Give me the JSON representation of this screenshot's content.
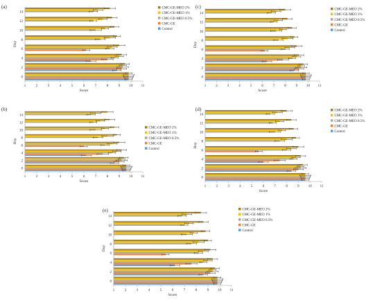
{
  "legend_entries": [
    "CMC-GE-MEO 2%",
    "CMC-GE-MEO 1%",
    "CMC-GE-MEO 0.5%",
    "CMC-GE",
    "Control"
  ],
  "colors": {
    "CMC-GE-MEO 2%": "#a67e12",
    "CMC-GE-MEO 1%": "#f2c200",
    "CMC-GE-MEO 0.5%": "#a5a5a5",
    "CMC-GE": "#ef7d32",
    "Control": "#5b9bd5",
    "axis": "#999999",
    "error_bar": "#333333"
  },
  "chart_data": [
    {
      "panel": "(a)",
      "type": "bar",
      "orientation": "horizontal",
      "xlabel": "Score",
      "ylabel": "Day",
      "xlim": [
        1,
        11
      ],
      "xticks": [
        "1",
        "2",
        "3",
        "4",
        "5",
        "6",
        "7",
        "8",
        "9",
        "10",
        "11"
      ],
      "categories": [
        "0",
        "2",
        "4",
        "6",
        "8",
        "10",
        "12",
        "14"
      ],
      "legend_position": "right",
      "series": [
        {
          "name": "Control",
          "values": [
            9.8,
            8.8,
            6.6,
            null,
            null,
            null,
            null,
            null
          ]
        },
        {
          "name": "CMC-GE",
          "values": [
            9.8,
            9.2,
            8.0,
            6.2,
            null,
            null,
            null,
            null
          ]
        },
        {
          "name": "CMC-GE-MEO 0.5%",
          "values": [
            9.8,
            9.3,
            8.6,
            8.2,
            7.4,
            7.0,
            6.8,
            6.8
          ]
        },
        {
          "name": "CMC-GE-MEO 1%",
          "values": [
            9.8,
            9.3,
            9.0,
            8.4,
            8.2,
            7.8,
            7.6,
            7.2
          ]
        },
        {
          "name": "CMC-GE-MEO 2%",
          "values": [
            9.8,
            9.5,
            9.2,
            9.0,
            8.8,
            8.6,
            8.4,
            8.2
          ]
        }
      ]
    },
    {
      "panel": "(b)",
      "type": "bar",
      "orientation": "horizontal",
      "xlabel": "Score",
      "ylabel": "Day",
      "xlim": [
        1,
        11
      ],
      "xticks": [
        "1",
        "2",
        "3",
        "4",
        "5",
        "6",
        "7",
        "8",
        "9",
        "10",
        "11"
      ],
      "categories": [
        "0",
        "2",
        "4",
        "6",
        "8",
        "10",
        "12",
        "14"
      ],
      "legend_position": "right",
      "series": [
        {
          "name": "Control",
          "values": [
            9.6,
            8.6,
            6.2,
            null,
            null,
            null,
            null,
            null
          ]
        },
        {
          "name": "CMC-GE",
          "values": [
            9.6,
            9.0,
            7.6,
            6.0,
            null,
            null,
            null,
            null
          ]
        },
        {
          "name": "CMC-GE-MEO 0.5%",
          "values": [
            9.6,
            9.2,
            8.4,
            7.8,
            7.2,
            7.0,
            6.8,
            6.6
          ]
        },
        {
          "name": "CMC-GE-MEO 1%",
          "values": [
            9.6,
            9.2,
            8.8,
            8.4,
            8.0,
            7.8,
            7.4,
            7.0
          ]
        },
        {
          "name": "CMC-GE-MEO 2%",
          "values": [
            9.6,
            9.4,
            9.2,
            9.0,
            8.8,
            8.6,
            8.2,
            8.0
          ]
        }
      ]
    },
    {
      "panel": "(c)",
      "type": "bar",
      "orientation": "horizontal",
      "xlabel": "Score",
      "ylabel": "Day",
      "xlim": [
        1,
        11
      ],
      "xticks": [
        "1",
        "2",
        "3",
        "4",
        "5",
        "6",
        "7",
        "8",
        "9",
        "10",
        "11"
      ],
      "categories": [
        "0",
        "2",
        "4",
        "6",
        "8",
        "10",
        "12",
        "14"
      ],
      "legend_position": "right",
      "series": [
        {
          "name": "Control",
          "values": [
            9.8,
            8.8,
            6.4,
            null,
            null,
            null,
            null,
            null
          ]
        },
        {
          "name": "CMC-GE",
          "values": [
            9.8,
            9.2,
            7.8,
            6.2,
            null,
            null,
            null,
            null
          ]
        },
        {
          "name": "CMC-GE-MEO 0.5%",
          "values": [
            9.8,
            9.4,
            8.6,
            8.0,
            7.4,
            7.2,
            7.0,
            6.8
          ]
        },
        {
          "name": "CMC-GE-MEO 1%",
          "values": [
            9.8,
            9.4,
            9.0,
            8.4,
            8.2,
            7.8,
            7.4,
            7.2
          ]
        },
        {
          "name": "CMC-GE-MEO 2%",
          "values": [
            9.8,
            9.6,
            9.2,
            9.0,
            8.8,
            8.6,
            8.2,
            8.0
          ]
        }
      ]
    },
    {
      "panel": "(d)",
      "type": "bar",
      "orientation": "horizontal",
      "xlabel": "Score",
      "ylabel": "Day",
      "xlim": [
        1,
        11
      ],
      "xticks": [
        "1",
        "2",
        "3",
        "4",
        "5",
        "6",
        "7",
        "8",
        "9",
        "10",
        "11"
      ],
      "categories": [
        "0",
        "2",
        "4",
        "6",
        "8",
        "10",
        "12",
        "14"
      ],
      "legend_position": "right",
      "series": [
        {
          "name": "Control",
          "values": [
            9.6,
            8.4,
            6.0,
            null,
            null,
            null,
            null,
            null
          ]
        },
        {
          "name": "CMC-GE",
          "values": [
            9.6,
            9.0,
            7.4,
            5.6,
            null,
            null,
            null,
            null
          ]
        },
        {
          "name": "CMC-GE-MEO 0.5%",
          "values": [
            9.6,
            9.2,
            8.6,
            8.0,
            7.4,
            7.0,
            6.8,
            6.6
          ]
        },
        {
          "name": "CMC-GE-MEO 1%",
          "values": [
            9.6,
            9.2,
            8.8,
            8.4,
            8.0,
            7.6,
            7.4,
            7.2
          ]
        },
        {
          "name": "CMC-GE-MEO 2%",
          "values": [
            9.6,
            9.4,
            9.2,
            9.0,
            8.8,
            8.6,
            8.4,
            8.0
          ]
        }
      ]
    },
    {
      "panel": "(e)",
      "type": "bar",
      "orientation": "horizontal",
      "xlabel": "Score",
      "ylabel": "Day",
      "xlim": [
        1,
        11
      ],
      "xticks": [
        "1",
        "2",
        "3",
        "4",
        "5",
        "6",
        "7",
        "8",
        "9",
        "10",
        "11"
      ],
      "categories": [
        "0",
        "2",
        "4",
        "6",
        "8",
        "10",
        "12",
        "14"
      ],
      "legend_position": "right",
      "series": [
        {
          "name": "Control",
          "values": [
            9.8,
            8.6,
            6.2,
            null,
            null,
            null,
            null,
            null
          ]
        },
        {
          "name": "CMC-GE",
          "values": [
            9.8,
            9.2,
            7.6,
            5.4,
            null,
            null,
            null,
            null
          ]
        },
        {
          "name": "CMC-GE-MEO 0.5%",
          "values": [
            9.8,
            9.4,
            8.6,
            8.2,
            7.6,
            7.2,
            7.0,
            6.8
          ]
        },
        {
          "name": "CMC-GE-MEO 1%",
          "values": [
            9.8,
            9.4,
            9.0,
            8.6,
            8.2,
            7.8,
            7.4,
            7.2
          ]
        },
        {
          "name": "CMC-GE-MEO 2%",
          "values": [
            9.8,
            9.6,
            9.4,
            9.2,
            9.0,
            8.8,
            8.6,
            8.4
          ]
        }
      ]
    }
  ]
}
